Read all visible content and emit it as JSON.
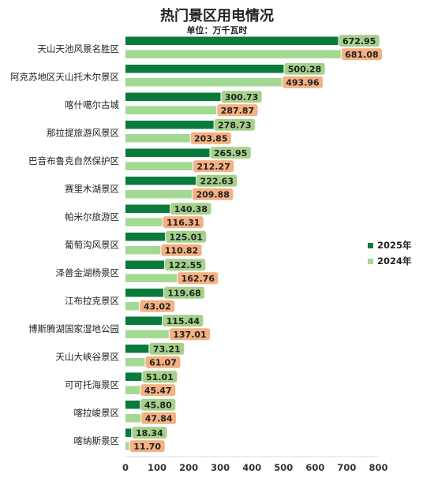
{
  "chart_data": {
    "type": "bar",
    "orientation": "horizontal",
    "title": "热门景区用电情况",
    "subtitle": "单位：万千瓦时",
    "categories": [
      "天山天池风景名胜区",
      "阿克苏地区天山托木尔景区",
      "喀什噶尔古城",
      "那拉提旅游风景区",
      "巴音布鲁克自然保护区",
      "赛里木湖景区",
      "帕米尔旅游区",
      "葡萄沟风景区",
      "泽普金湖杨景区",
      "江布拉克景区",
      "博斯腾湖国家湿地公园",
      "天山大峡谷景区",
      "可可托海景区",
      "喀拉峻景区",
      "喀纳斯景区"
    ],
    "series": [
      {
        "name": "2025年",
        "color": "#0a7a3c",
        "label_bg": "#a5d18a",
        "values": [
          672.95,
          500.28,
          300.73,
          278.73,
          265.95,
          222.63,
          140.38,
          125.01,
          122.55,
          119.68,
          115.44,
          73.21,
          51.01,
          45.8,
          18.34
        ],
        "labels": [
          "672.95",
          "500.28",
          "300.73",
          "278.73",
          "265.95",
          "222.63",
          "140.38",
          "125.01",
          "122.55",
          "119.68",
          "115.44",
          "73.21",
          "51.01",
          "45.80",
          "18.34"
        ]
      },
      {
        "name": "2024年",
        "color": "#a3d993",
        "label_bg": "#f4b183",
        "values": [
          681.08,
          493.96,
          287.87,
          203.85,
          212.27,
          209.88,
          116.31,
          110.82,
          162.76,
          43.02,
          137.01,
          61.07,
          45.47,
          47.84,
          11.7
        ],
        "labels": [
          "681.08",
          "493.96",
          "287.87",
          "203.85",
          "212.27",
          "209.88",
          "116.31",
          "110.82",
          "162.76",
          "43.02",
          "137.01",
          "61.07",
          "45.47",
          "47.84",
          "11.70"
        ]
      }
    ],
    "xlim": [
      0,
      800
    ],
    "xticks": [
      "0",
      "100",
      "200",
      "300",
      "400",
      "500",
      "600",
      "700",
      "800"
    ],
    "grid": false,
    "legend_position": "right"
  }
}
